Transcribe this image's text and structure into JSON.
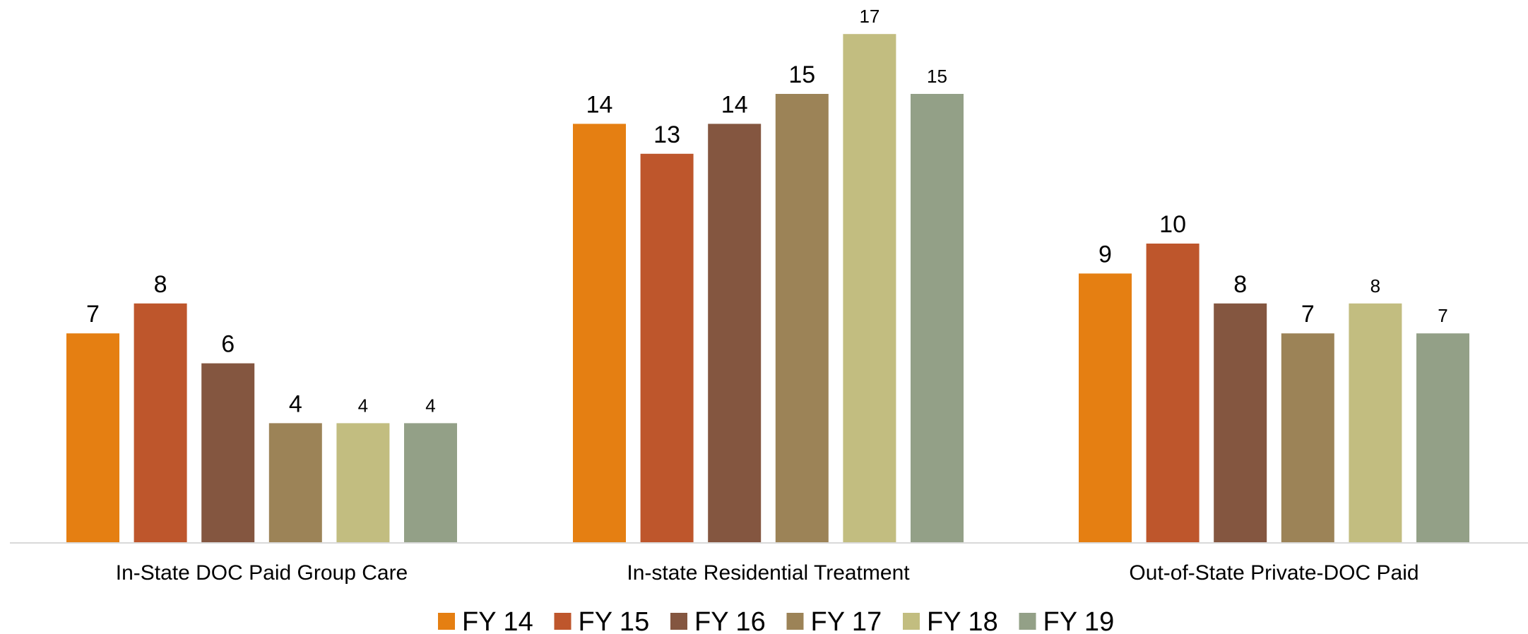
{
  "chart_data": {
    "type": "bar",
    "title": "",
    "xlabel": "",
    "ylabel": "",
    "ylim": [
      0,
      17.5
    ],
    "grid": false,
    "legend_position": "bottom",
    "categories": [
      "In-State DOC Paid Group Care",
      "In-state Residential Treatment",
      "Out-of-State Private-DOC Paid"
    ],
    "series": [
      {
        "name": "FY 14",
        "color": "#E57F12",
        "values": [
          7,
          14,
          9
        ]
      },
      {
        "name": "FY 15",
        "color": "#BE562C",
        "values": [
          8,
          13,
          10
        ]
      },
      {
        "name": "FY 16",
        "color": "#845640",
        "values": [
          6,
          14,
          8
        ]
      },
      {
        "name": "FY 17",
        "color": "#9C8357",
        "values": [
          4,
          15,
          7
        ]
      },
      {
        "name": "FY 18",
        "color": "#C2BD80",
        "values": [
          4,
          17,
          8
        ]
      },
      {
        "name": "FY 19",
        "color": "#93A087",
        "values": [
          4,
          15,
          7
        ]
      }
    ]
  }
}
